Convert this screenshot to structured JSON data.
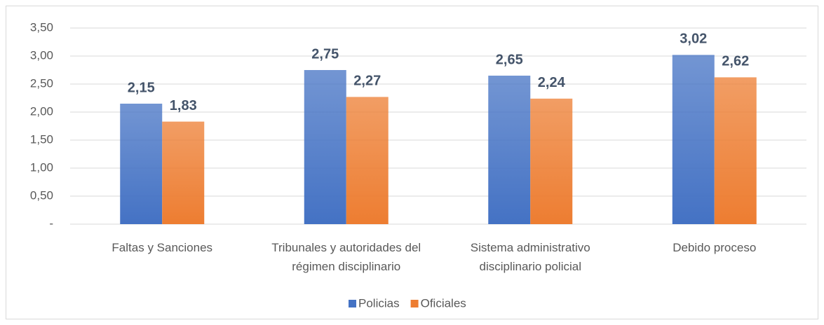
{
  "chart_data": {
    "type": "bar",
    "categories": [
      "Faltas y Sanciones",
      "Tribunales y autoridades del régimen disciplinario",
      "Sistema administrativo disciplinario policial",
      "Debido proceso"
    ],
    "series": [
      {
        "name": "Policias",
        "color": "#4472c4",
        "values": [
          2.15,
          2.75,
          2.65,
          3.02
        ],
        "value_labels": [
          "2,15",
          "2,75",
          "2,65",
          "3,02"
        ]
      },
      {
        "name": "Oficiales",
        "color": "#ed7d31",
        "values": [
          1.83,
          2.27,
          2.24,
          2.62
        ],
        "value_labels": [
          "1,83",
          "2,27",
          "2,24",
          "2,62"
        ]
      }
    ],
    "ylim": [
      0,
      3.5
    ],
    "yticks": [
      {
        "value": 0,
        "label": "-"
      },
      {
        "value": 0.5,
        "label": "0,50"
      },
      {
        "value": 1,
        "label": "1,00"
      },
      {
        "value": 1.5,
        "label": "1,50"
      },
      {
        "value": 2,
        "label": "2,00"
      },
      {
        "value": 2.5,
        "label": "2,50"
      },
      {
        "value": 3,
        "label": "3,00"
      },
      {
        "value": 3.5,
        "label": "3,50"
      }
    ],
    "grid": true,
    "legend": "bottom"
  }
}
